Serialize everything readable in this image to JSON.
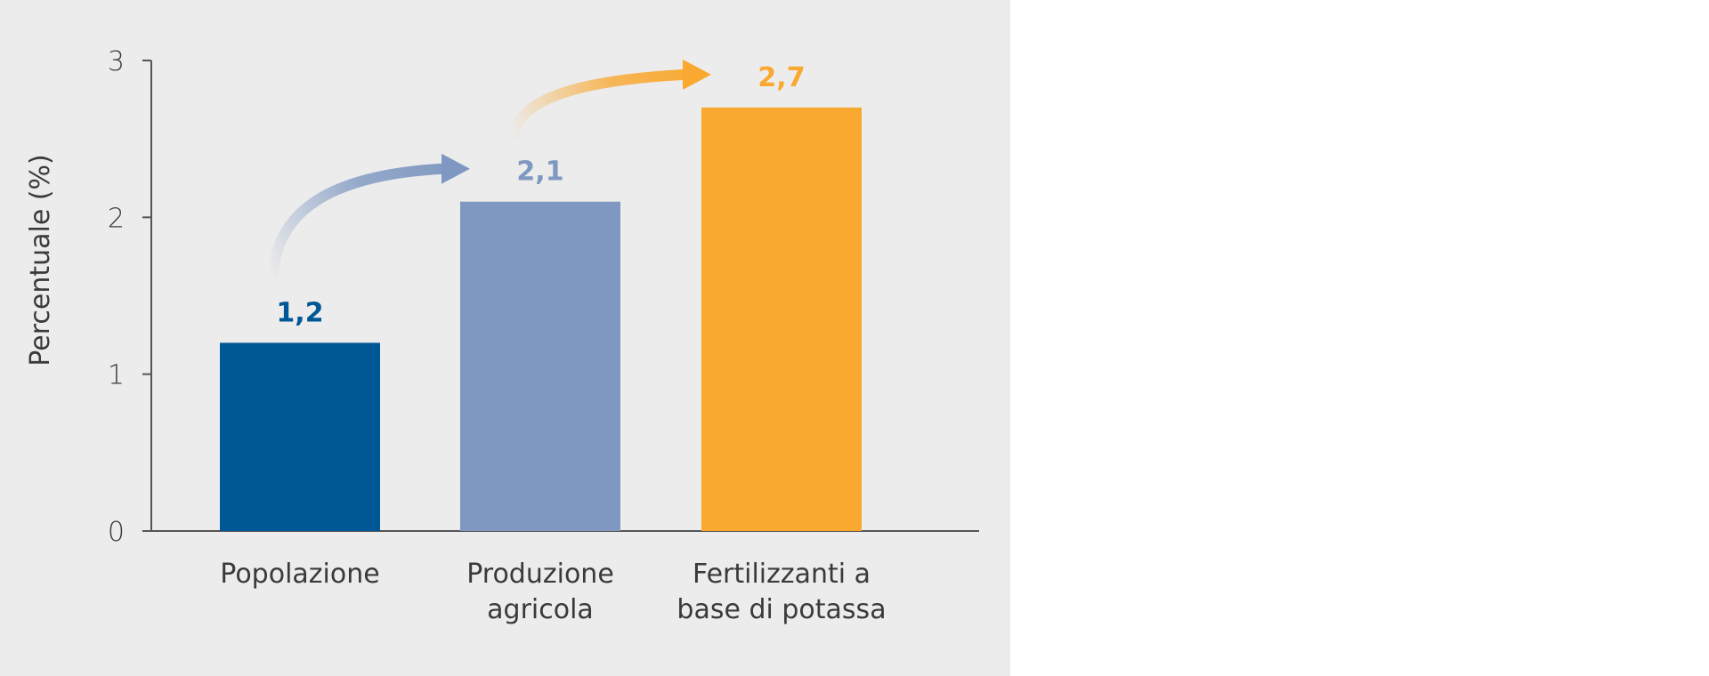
{
  "chart_data": {
    "type": "bar",
    "categories": [
      [
        "Popolazione"
      ],
      [
        "Produzione",
        "agricola"
      ],
      [
        "Fertilizzanti a",
        "base di potassa"
      ]
    ],
    "values": [
      1.2,
      2.1,
      2.7
    ],
    "value_labels": [
      "1,2",
      "2,1",
      "2,7"
    ],
    "bar_colors": [
      "#005795",
      "#7f98c1",
      "#f9a830"
    ],
    "label_colors": [
      "#005795",
      "#7f98c1",
      "#f9a830"
    ],
    "arrows": [
      {
        "from": 0,
        "to": 1,
        "color": "#7f98c1"
      },
      {
        "from": 1,
        "to": 2,
        "color": "#f9a830"
      }
    ],
    "ylabel": "Percentuale (%)",
    "xlabel": "",
    "ylim": [
      0,
      3
    ],
    "yticks": [
      0,
      1,
      2,
      3
    ],
    "grid": false,
    "background": "#ececec"
  }
}
